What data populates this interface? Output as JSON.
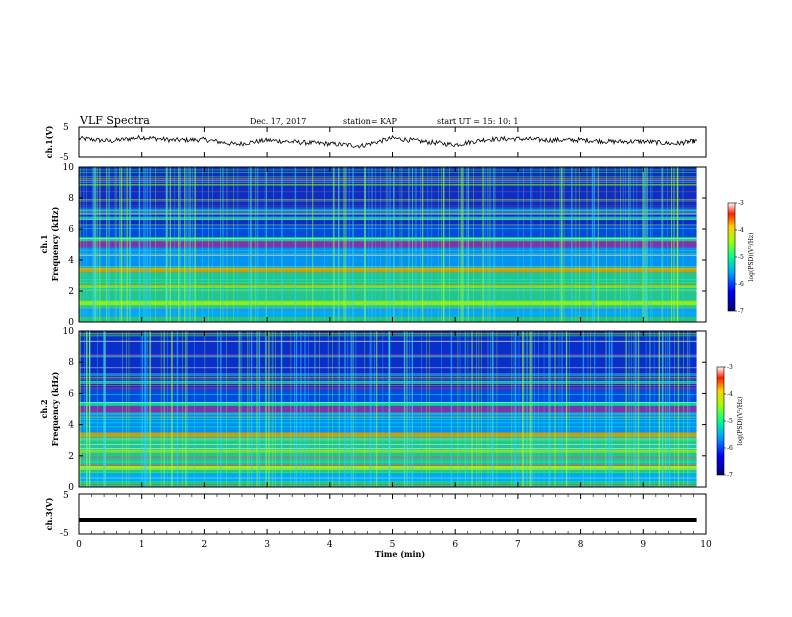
{
  "header": {
    "title": "VLF Spectra",
    "date": "Dec. 17, 2017",
    "station": "station= KAP",
    "start": "start  UT =   15: 10: 1"
  },
  "chart_data": [
    {
      "type": "line",
      "panel": "ch1-waveform",
      "ylabel": "ch.1(V)",
      "ylim": [
        -5,
        5
      ],
      "yticks": [
        "5",
        "-5"
      ],
      "x": [
        0,
        0.5,
        1,
        1.5,
        2,
        2.5,
        3,
        3.5,
        4,
        4.5,
        5,
        5.5,
        6,
        6.5,
        7,
        7.5,
        8,
        8.5,
        9,
        9.5,
        9.85
      ],
      "values": [
        1.2,
        0.3,
        1.6,
        0.6,
        0.8,
        -0.8,
        0.6,
        -0.1,
        -0.6,
        -1.3,
        1.3,
        0.1,
        -0.9,
        0.9,
        1.1,
        0.6,
        0.7,
        0.1,
        0.2,
        -0.6,
        0.4
      ]
    },
    {
      "type": "heatmap",
      "panel": "ch1-spectrogram",
      "ylabel": "ch.1\nFrequency (kHz)",
      "ylim": [
        0,
        10
      ],
      "yticks": [
        "0",
        "2",
        "4",
        "6",
        "8",
        "10"
      ],
      "colorbar": {
        "label": "log(PSD)(V²/Hz)",
        "range": [
          -7,
          -3
        ],
        "ticks": [
          "-3",
          "-4",
          "-5",
          "-6",
          "-7"
        ]
      }
    },
    {
      "type": "heatmap",
      "panel": "ch2-spectrogram",
      "ylabel": "ch.2\nFrequency (kHz)",
      "ylim": [
        0,
        10
      ],
      "yticks": [
        "0",
        "2",
        "4",
        "6",
        "8",
        "10"
      ],
      "colorbar": {
        "label": "log(PSD)(V²/Hz)",
        "range": [
          -7,
          -3
        ],
        "ticks": [
          "-3",
          "-4",
          "-5",
          "-6",
          "-7"
        ]
      }
    },
    {
      "type": "line",
      "panel": "ch3-waveform",
      "ylabel": "ch.3(V)",
      "ylim": [
        -5,
        5
      ],
      "yticks": [
        "5",
        "-5"
      ],
      "x": [
        0,
        9.85
      ],
      "values": [
        -1.5,
        -1.5
      ]
    }
  ],
  "xaxis": {
    "label": "Time (min)",
    "xlim": [
      0,
      10
    ],
    "ticks": [
      "0",
      "1",
      "2",
      "3",
      "4",
      "5",
      "6",
      "7",
      "8",
      "9",
      "10"
    ]
  },
  "colors": {
    "background_spectrum": "#0a2fc8",
    "waveform": "#000000"
  }
}
